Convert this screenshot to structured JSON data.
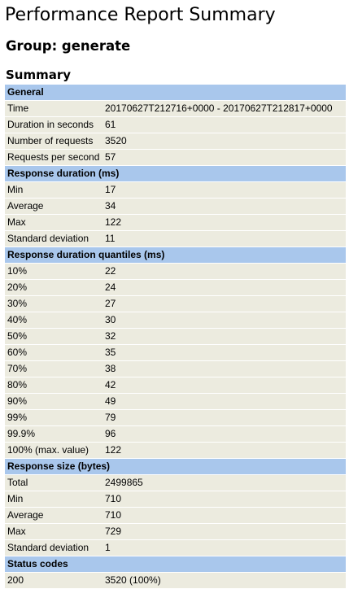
{
  "page": {
    "title": "Performance Report Summary",
    "group_heading": "Group: generate",
    "summary_heading": "Summary"
  },
  "sections": [
    {
      "title": "General",
      "rows": [
        {
          "label": "Time",
          "value": "20170627T212716+0000 - 20170627T212817+0000"
        },
        {
          "label": "Duration in seconds",
          "value": "61"
        },
        {
          "label": "Number of requests",
          "value": "3520"
        },
        {
          "label": "Requests per second",
          "value": "57"
        }
      ]
    },
    {
      "title": "Response duration (ms)",
      "rows": [
        {
          "label": "Min",
          "value": "17"
        },
        {
          "label": "Average",
          "value": "34"
        },
        {
          "label": "Max",
          "value": "122"
        },
        {
          "label": "Standard deviation",
          "value": "11"
        }
      ]
    },
    {
      "title": "Response duration quantiles (ms)",
      "rows": [
        {
          "label": "10%",
          "value": "22"
        },
        {
          "label": "20%",
          "value": "24"
        },
        {
          "label": "30%",
          "value": "27"
        },
        {
          "label": "40%",
          "value": "30"
        },
        {
          "label": "50%",
          "value": "32"
        },
        {
          "label": "60%",
          "value": "35"
        },
        {
          "label": "70%",
          "value": "38"
        },
        {
          "label": "80%",
          "value": "42"
        },
        {
          "label": "90%",
          "value": "49"
        },
        {
          "label": "99%",
          "value": "79"
        },
        {
          "label": "99.9%",
          "value": "96"
        },
        {
          "label": "100% (max. value)",
          "value": "122"
        }
      ]
    },
    {
      "title": "Response size (bytes)",
      "rows": [
        {
          "label": "Total",
          "value": "2499865"
        },
        {
          "label": "Min",
          "value": "710"
        },
        {
          "label": "Average",
          "value": "710"
        },
        {
          "label": "Max",
          "value": "729"
        },
        {
          "label": "Standard deviation",
          "value": "1"
        }
      ]
    },
    {
      "title": "Status codes",
      "rows": [
        {
          "label": "200",
          "value": "3520 (100%)"
        }
      ]
    }
  ],
  "colors": {
    "section_header_bg": "#a9c7ec",
    "row_bg": "#ecebdf"
  }
}
